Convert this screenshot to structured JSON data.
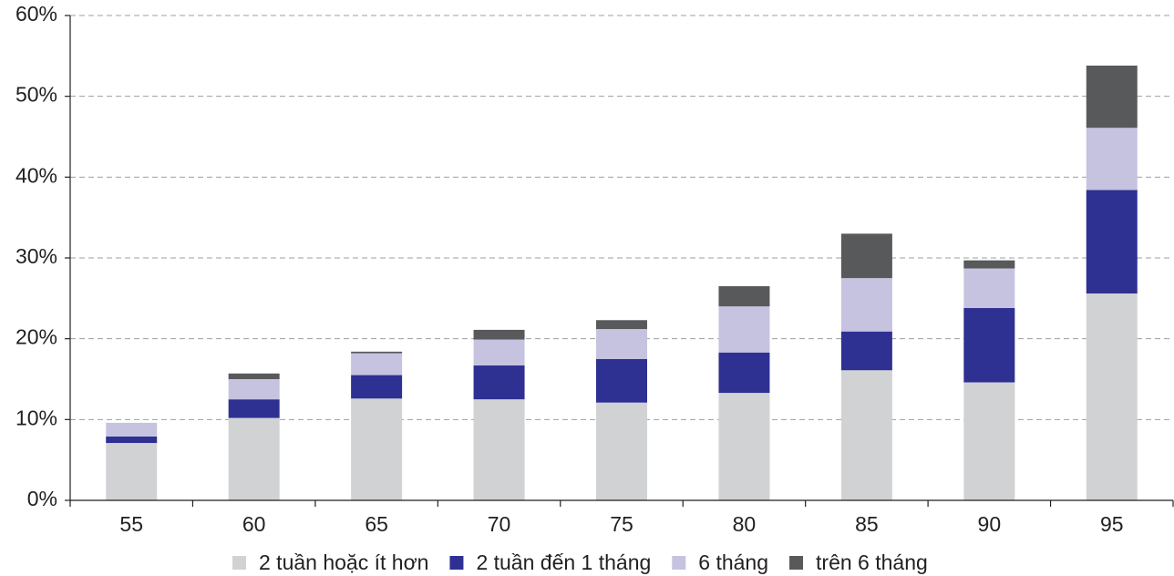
{
  "chart_data": {
    "type": "stacked-bar",
    "categories": [
      "55",
      "60",
      "65",
      "70",
      "75",
      "80",
      "85",
      "90",
      "95"
    ],
    "series": [
      {
        "name": "2 tuần hoặc ít hơn",
        "color": "#d1d2d4",
        "values": [
          7.1,
          10.2,
          12.6,
          12.5,
          12.1,
          13.3,
          16.1,
          14.6,
          25.6
        ]
      },
      {
        "name": "2 tuần đến 1 tháng",
        "color": "#2e3192",
        "values": [
          0.8,
          2.3,
          2.9,
          4.2,
          5.4,
          5.0,
          4.8,
          9.2,
          12.8
        ]
      },
      {
        "name": "6 tháng",
        "color": "#c5c3e0",
        "values": [
          1.7,
          2.5,
          2.7,
          3.2,
          3.7,
          5.7,
          6.6,
          4.9,
          7.7
        ]
      },
      {
        "name": "trên 6 tháng",
        "color": "#58595b",
        "values": [
          0,
          0.7,
          0.2,
          1.2,
          1.1,
          2.5,
          5.5,
          1.0,
          7.7
        ]
      }
    ],
    "ylim": [
      0,
      60
    ],
    "yticks": [
      {
        "value": 0,
        "label": "0%"
      },
      {
        "value": 10,
        "label": "10%"
      },
      {
        "value": 20,
        "label": "20%"
      },
      {
        "value": 30,
        "label": "30%"
      },
      {
        "value": 40,
        "label": "40%"
      },
      {
        "value": 50,
        "label": "50%"
      },
      {
        "value": 60,
        "label": "60%"
      }
    ],
    "grid": true
  }
}
